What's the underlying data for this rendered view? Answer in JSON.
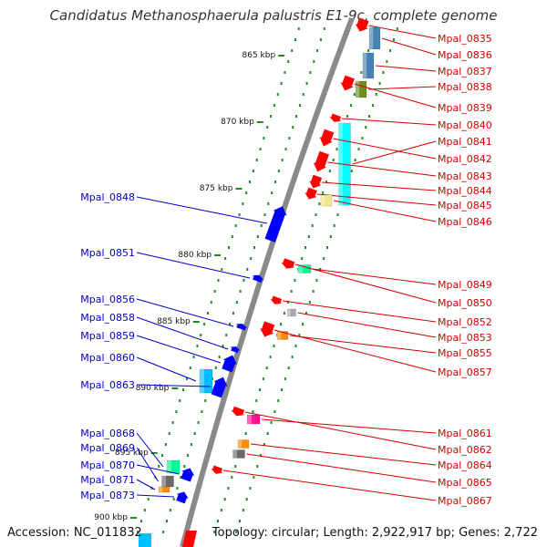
{
  "title": "Candidatus Methanosphaerula palustris E1-9c, complete genome",
  "footer": {
    "accession": "Accession: NC_011832",
    "topology": "Topology: circular; Length: 2,922,917 bp; Genes: 2,722"
  },
  "colors": {
    "backbone": "#8a8a8a",
    "tick": "#228b22",
    "forward_label": "#d40000",
    "reverse_label": "#0000c8"
  },
  "scale_labels": [
    "865 kbp",
    "870 kbp",
    "875 kbp",
    "880 kbp",
    "885 kbp",
    "890 kbp",
    "895 kbp",
    "900 kbp"
  ],
  "forward_genes": [
    {
      "label": "Mpal_0835",
      "color": "#ff0000"
    },
    {
      "label": "Mpal_0836",
      "color": "#4682b4"
    },
    {
      "label": "Mpal_0837",
      "color": "#4682b4"
    },
    {
      "label": "Mpal_0838",
      "color": "#6b8e23"
    },
    {
      "label": "Mpal_0839",
      "color": "#ff0000"
    },
    {
      "label": "Mpal_0840",
      "color": "#ff0000"
    },
    {
      "label": "Mpal_0841",
      "color": "#00ffff"
    },
    {
      "label": "Mpal_0842",
      "color": "#ff0000"
    },
    {
      "label": "Mpal_0843",
      "color": "#ff0000"
    },
    {
      "label": "Mpal_0844",
      "color": "#ff0000"
    },
    {
      "label": "Mpal_0845",
      "color": "#ff0000"
    },
    {
      "label": "Mpal_0846",
      "color": "#f0e68c"
    },
    {
      "label": "Mpal_0849",
      "color": "#00fa9a"
    },
    {
      "label": "Mpal_0850",
      "color": "#ff0000"
    },
    {
      "label": "Mpal_0852",
      "color": "#ff0000"
    },
    {
      "label": "Mpal_0853",
      "color": "#a9a9a9"
    },
    {
      "label": "Mpal_0855",
      "color": "#ff8c00"
    },
    {
      "label": "Mpal_0857",
      "color": "#ff0000"
    },
    {
      "label": "Mpal_0861",
      "color": "#ff1493"
    },
    {
      "label": "Mpal_0862",
      "color": "#ff0000"
    },
    {
      "label": "Mpal_0864",
      "color": "#ff8c00"
    },
    {
      "label": "Mpal_0865",
      "color": "#696969"
    },
    {
      "label": "Mpal_0867",
      "color": "#ff0000"
    }
  ],
  "reverse_genes": [
    {
      "label": "Mpal_0848",
      "color": "#0000ff"
    },
    {
      "label": "Mpal_0851",
      "color": "#0000ff"
    },
    {
      "label": "Mpal_0856",
      "color": "#0000ff"
    },
    {
      "label": "Mpal_0858",
      "color": "#0000ff"
    },
    {
      "label": "Mpal_0859",
      "color": "#0000ff"
    },
    {
      "label": "Mpal_0860",
      "color": "#00bfff"
    },
    {
      "label": "Mpal_0863",
      "color": "#0000ff"
    },
    {
      "label": "Mpal_0868",
      "color": "#00fa9a"
    },
    {
      "label": "Mpal_0869",
      "color": "#696969"
    },
    {
      "label": "Mpal_0870",
      "color": "#0000ff"
    },
    {
      "label": "Mpal_0871",
      "color": "#ff8c00"
    },
    {
      "label": "Mpal_0873",
      "color": "#0000ff"
    }
  ]
}
